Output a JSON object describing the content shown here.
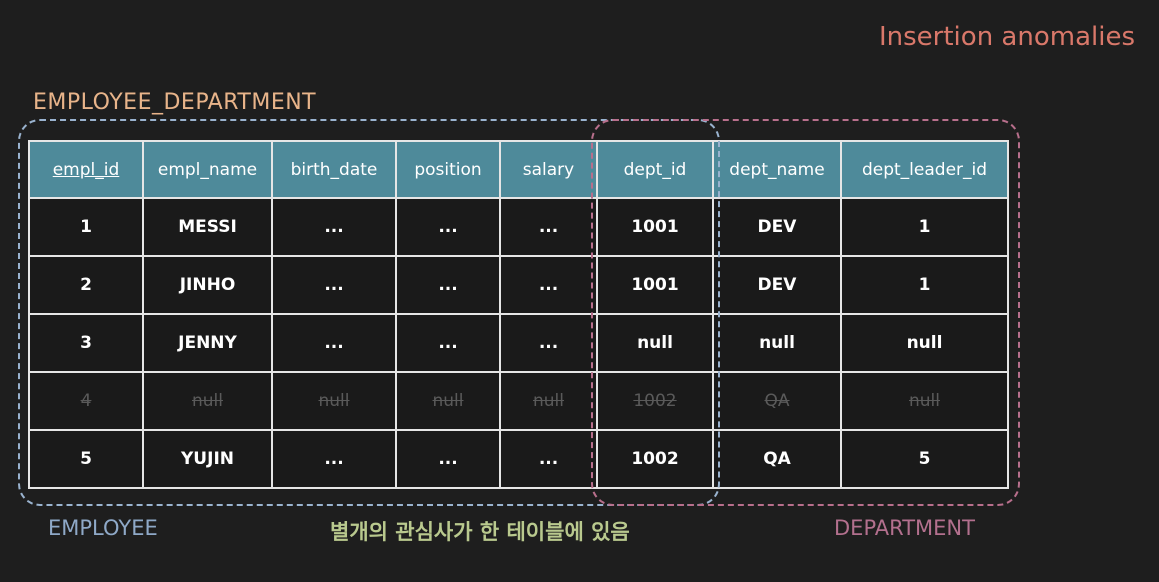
{
  "slide": {
    "title": "Insertion anomalies",
    "table_title": "EMPLOYEE_DEPARTMENT"
  },
  "table": {
    "headers": [
      "empl_id",
      "empl_name",
      "birth_date",
      "position",
      "salary",
      "dept_id",
      "dept_name",
      "dept_leader_id"
    ],
    "rows": [
      [
        "1",
        "MESSI",
        "...",
        "...",
        "...",
        "1001",
        "DEV",
        "1"
      ],
      [
        "2",
        "JINHO",
        "...",
        "...",
        "...",
        "1001",
        "DEV",
        "1"
      ],
      [
        "3",
        "JENNY",
        "...",
        "...",
        "...",
        "null",
        "null",
        "null"
      ],
      [
        "4",
        "null",
        "null",
        "null",
        "null",
        "1002",
        "QA",
        "null"
      ],
      [
        "5",
        "YUJIN",
        "...",
        "...",
        "...",
        "1002",
        "QA",
        "5"
      ]
    ]
  },
  "groups": {
    "employee_label": "EMPLOYEE",
    "department_label": "DEPARTMENT"
  },
  "caption": "별개의 관심사가 한 테이블에 있음",
  "colors": {
    "header_bg": "#4e8a9a",
    "employee_group": "#9ab3cf",
    "department_group": "#b86f8c",
    "title": "#d9786a",
    "caption": "#b9c98e"
  }
}
